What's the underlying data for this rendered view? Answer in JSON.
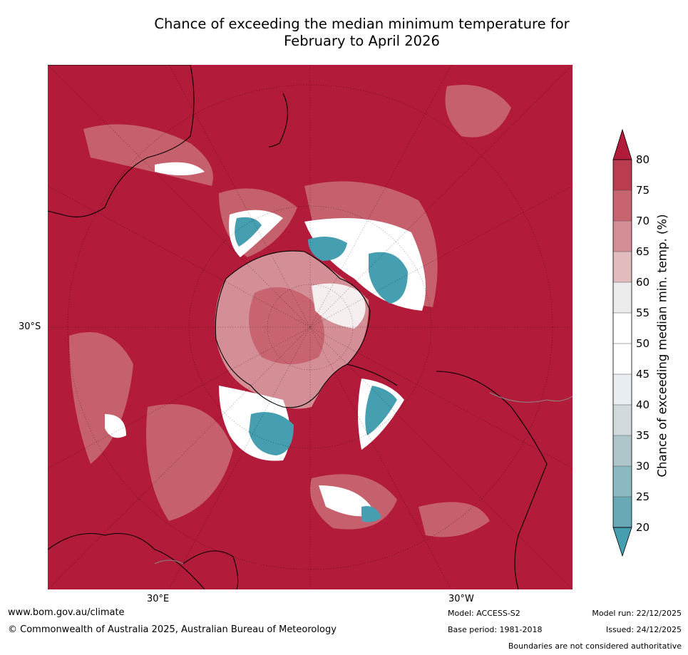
{
  "header": {
    "title_line1": "Chance of exceeding the median minimum temperature for",
    "title_line2": "February to April 2026"
  },
  "map": {
    "projection": "south-polar-stereographic",
    "lat_label": "30°S",
    "lon_label_east": "30°E",
    "lon_label_west": "30°W",
    "colors": {
      "ocean_high": "#b31b3a",
      "land_outline": "#000000",
      "border": "#888888"
    }
  },
  "colorbar": {
    "label": "Chance of exceeding median min. temp. (%)",
    "ticks": [
      "80",
      "75",
      "70",
      "65",
      "60",
      "55",
      "50",
      "45",
      "40",
      "35",
      "30",
      "25",
      "20"
    ],
    "bands": [
      {
        "range": "75-80",
        "color": "#bc3c4f"
      },
      {
        "range": "70-75",
        "color": "#c76470"
      },
      {
        "range": "65-70",
        "color": "#d48e96"
      },
      {
        "range": "60-65",
        "color": "#e2bbbf"
      },
      {
        "range": "55-60",
        "color": "#ebebeb"
      },
      {
        "range": "50-55",
        "color": "#ffffff"
      },
      {
        "range": "45-50",
        "color": "#ffffff"
      },
      {
        "range": "40-45",
        "color": "#e7edf0"
      },
      {
        "range": "35-40",
        "color": "#d1d9dc"
      },
      {
        "range": "30-35",
        "color": "#aec6ca"
      },
      {
        "range": "25-30",
        "color": "#8ab8c3"
      },
      {
        "range": "20-25",
        "color": "#69a9b5"
      }
    ],
    "over_color": "#b31b3a",
    "under_color": "#459fb1"
  },
  "footer": {
    "url": "www.bom.gov.au/climate",
    "copyright": "© Commonwealth of Australia 2025, Australian Bureau of Meteorology",
    "model": "Model: ACCESS-S2",
    "base_period": "Base period: 1981-2018",
    "model_run": "Model run: 22/12/2025",
    "issued": "Issued: 24/12/2025",
    "disclaimer": "Boundaries are not considered authoritative"
  }
}
